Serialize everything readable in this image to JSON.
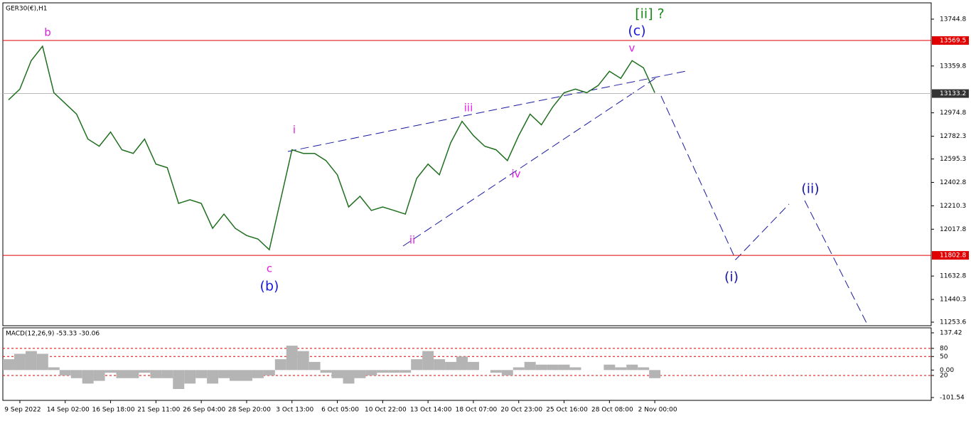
{
  "chart_data": {
    "type": "line",
    "title": "GER30(€),H1",
    "categories": [
      null,
      "9 Sep 2022",
      null,
      null,
      null,
      "14 Sep 02:00",
      null,
      null,
      null,
      "16 Sep 18:00",
      null,
      null,
      null,
      "21 Sep 11:00",
      null,
      null,
      null,
      "26 Sep 04:00",
      null,
      null,
      null,
      "28 Sep 20:00",
      null,
      null,
      null,
      "3 Oct 13:00",
      null,
      null,
      null,
      "6 Oct 05:00",
      null,
      null,
      null,
      "10 Oct 22:00",
      null,
      null,
      null,
      "13 Oct 14:00",
      null,
      null,
      null,
      "18 Oct 07:00",
      null,
      null,
      null,
      "20 Oct 23:00",
      null,
      null,
      null,
      "25 Oct 16:00",
      null,
      null,
      null,
      "28 Oct 08:00",
      null,
      null,
      null,
      "2 Nov 00:00"
    ],
    "series": [
      {
        "name": "GER30",
        "color": "#1f6f1f",
        "values": [
          13081,
          13170,
          13404,
          13522,
          13140,
          13052,
          12964,
          12759,
          12700,
          12817,
          12671,
          12641,
          12759,
          12553,
          12524,
          12230,
          12260,
          12230,
          12025,
          12142,
          12025,
          11966,
          11937,
          11849,
          12260,
          12671,
          12641,
          12641,
          12582,
          12465,
          12201,
          12289,
          12172,
          12201,
          12172,
          12142,
          12436,
          12553,
          12465,
          12729,
          12905,
          12788,
          12700,
          12671,
          12582,
          12788,
          12964,
          12876,
          13023,
          13140,
          13170,
          13140,
          13199,
          13316,
          13258,
          13404,
          13345,
          13140
        ]
      }
    ],
    "ylim": [
      11224.4,
      13879.0
    ],
    "yticks": [
      13744.8,
      13359.8,
      12974.8,
      12782.3,
      12595.3,
      12402.8,
      12210.3,
      12017.8,
      11632.8,
      11440.3,
      11253.6
    ],
    "price_lines": [
      {
        "value": 13569.5,
        "color": "#e00000"
      },
      {
        "value": 13133.2,
        "color": "#333333"
      },
      {
        "value": 11802.8,
        "color": "#e00000"
      }
    ],
    "annotations": [
      {
        "text": "b",
        "color": "#e020e0"
      },
      {
        "text": "c",
        "color": "#e020e0"
      },
      {
        "text": "(b)",
        "color": "#1a1ae0"
      },
      {
        "text": "i",
        "color": "#e020e0"
      },
      {
        "text": "ii",
        "color": "#e020e0"
      },
      {
        "text": "iii",
        "color": "#e020e0"
      },
      {
        "text": "iv",
        "color": "#e020e0"
      },
      {
        "text": "v",
        "color": "#e020e0"
      },
      {
        "text": "(c)",
        "color": "#1a1ae0"
      },
      {
        "text": "[ii] ?",
        "color": "#1a8a1a"
      },
      {
        "text": "(i)",
        "color": "#1a1aa0"
      },
      {
        "text": "(ii)",
        "color": "#1a1aa0"
      }
    ],
    "macd": {
      "title": "MACD(12,26,9) -53.33 -30.06",
      "color": "#b4b4b4",
      "values": [
        40,
        60,
        70,
        60,
        10,
        -20,
        -30,
        -50,
        -40,
        -10,
        -30,
        -30,
        -10,
        -30,
        -30,
        -70,
        -50,
        -30,
        -50,
        -30,
        -40,
        -40,
        -30,
        -20,
        40,
        90,
        70,
        30,
        -10,
        -30,
        -50,
        -30,
        -20,
        -10,
        -10,
        -10,
        40,
        70,
        40,
        30,
        50,
        30,
        0,
        -10,
        -20,
        10,
        30,
        20,
        20,
        20,
        10,
        0,
        0,
        20,
        10,
        20,
        10,
        -30
      ],
      "ylim": [
        -101.54,
        137.42
      ],
      "yticks": [
        137.42,
        80,
        50,
        {
          "value": 0,
          "label": "0.00"
        },
        {
          "value": -20,
          "label": "20"
        },
        -101.54
      ],
      "levels": [
        80,
        50,
        -20
      ]
    }
  }
}
